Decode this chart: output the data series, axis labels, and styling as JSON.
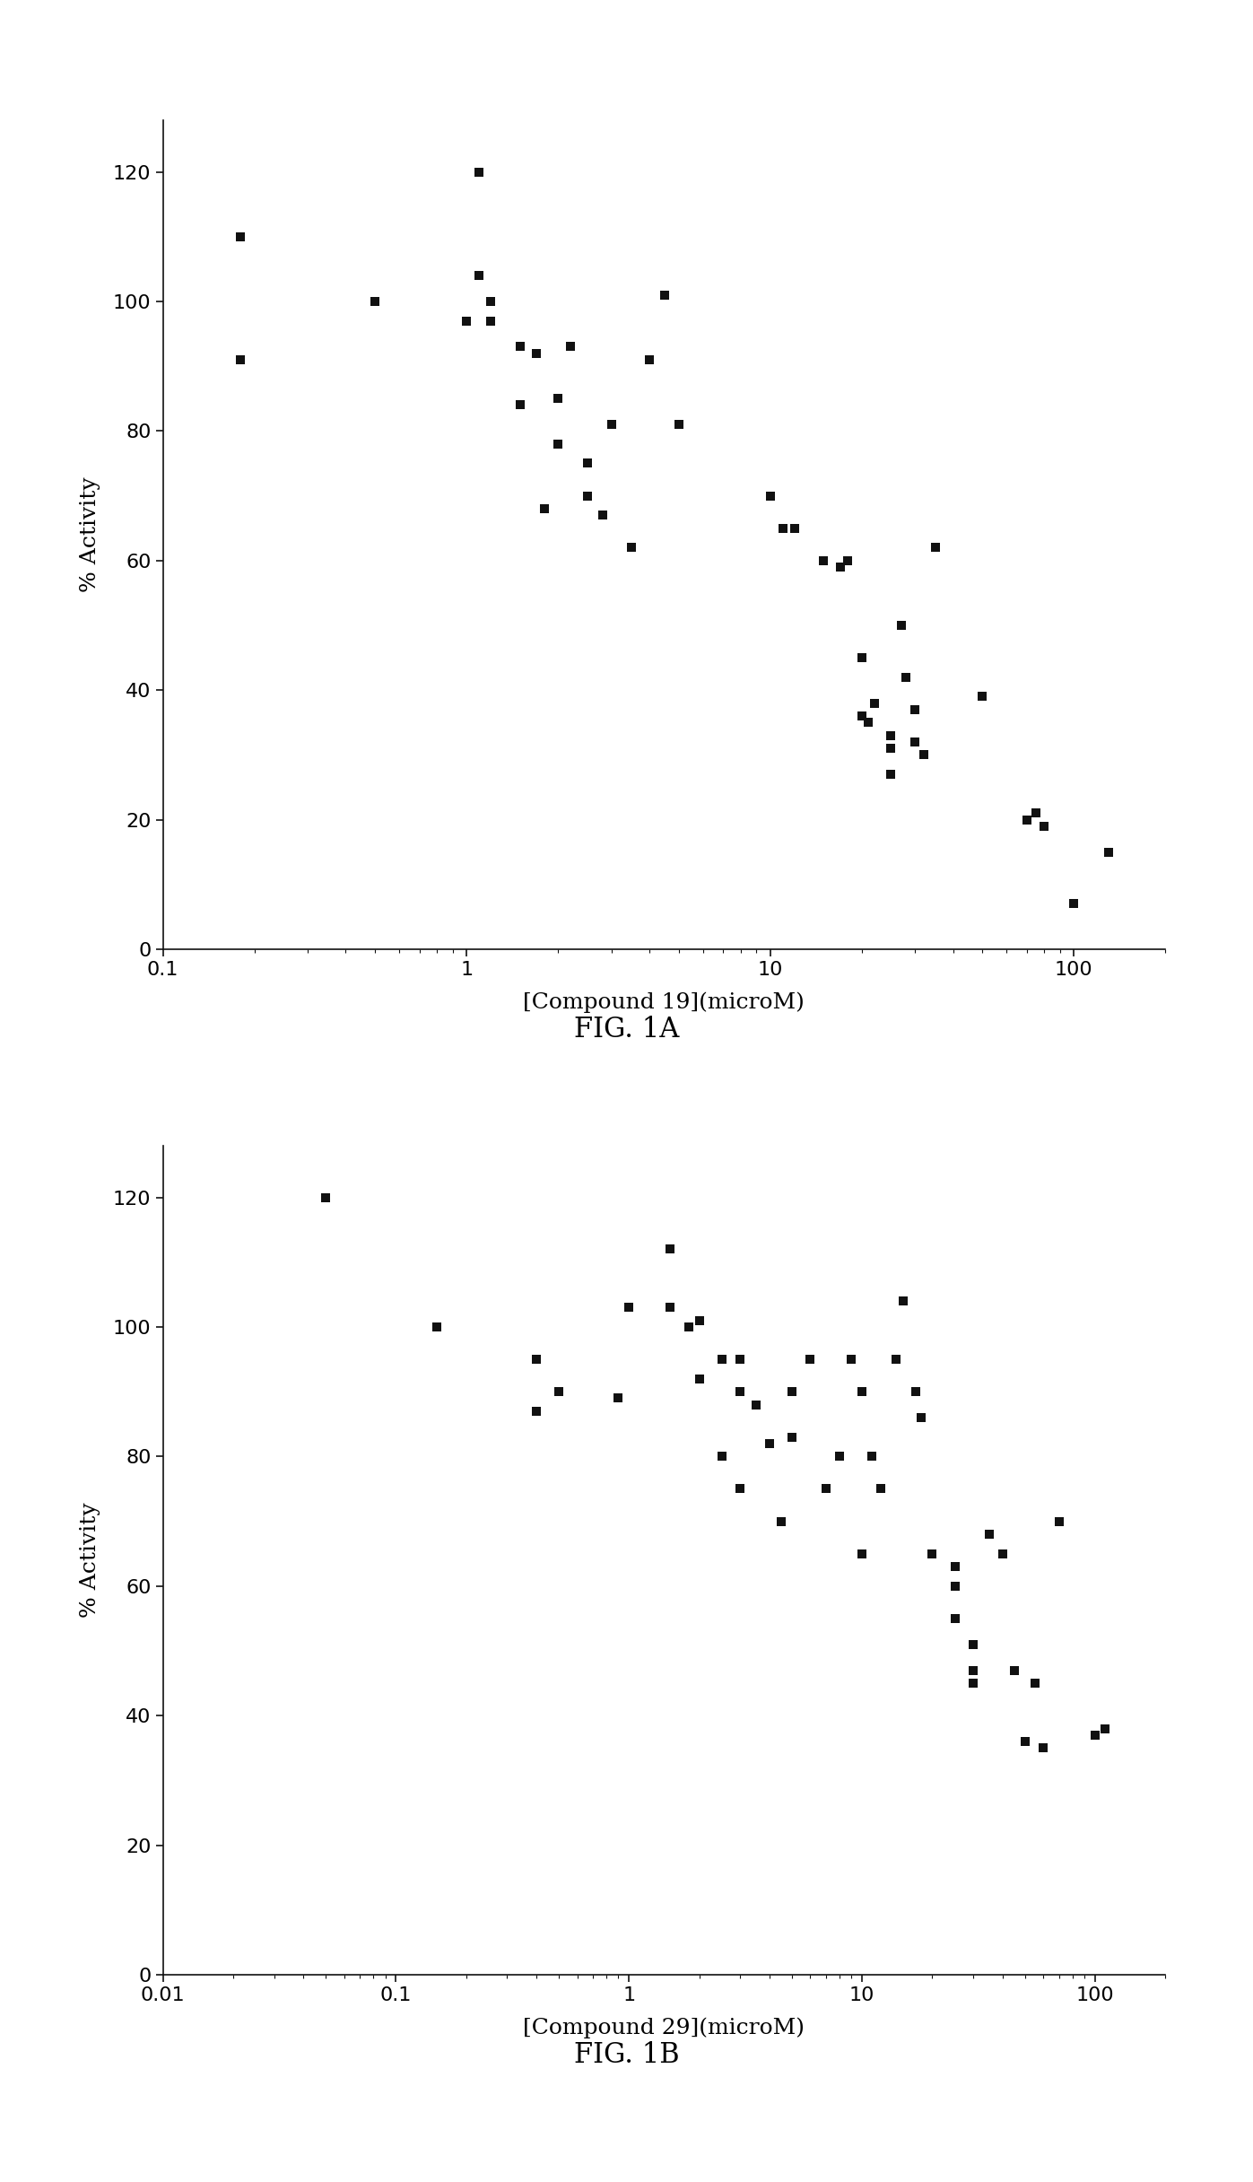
{
  "fig1a": {
    "x": [
      0.18,
      0.18,
      0.5,
      1.0,
      1.1,
      1.1,
      1.2,
      1.2,
      1.5,
      1.5,
      1.7,
      1.8,
      2.0,
      2.0,
      2.2,
      2.5,
      2.5,
      2.8,
      3.0,
      3.5,
      4.0,
      4.5,
      5.0,
      10,
      11,
      12,
      15,
      17,
      18,
      20,
      20,
      21,
      22,
      25,
      25,
      25,
      27,
      28,
      30,
      30,
      32,
      35,
      50,
      70,
      75,
      80,
      100,
      130
    ],
    "y": [
      110,
      91,
      100,
      97,
      120,
      104,
      100,
      97,
      84,
      93,
      92,
      68,
      85,
      78,
      93,
      75,
      70,
      67,
      81,
      62,
      91,
      101,
      81,
      70,
      65,
      65,
      60,
      59,
      60,
      45,
      36,
      35,
      38,
      31,
      33,
      27,
      50,
      42,
      32,
      37,
      30,
      62,
      39,
      20,
      21,
      19,
      7,
      15
    ],
    "xlabel": "[Compound 19](microM)",
    "ylabel": "% Activity",
    "xlim": [
      0.1,
      200
    ],
    "ylim": [
      0,
      128
    ],
    "yticks": [
      0,
      20,
      40,
      60,
      80,
      100,
      120
    ],
    "caption": "FIG. 1A"
  },
  "fig1b": {
    "x": [
      0.05,
      0.15,
      0.4,
      0.4,
      0.5,
      0.9,
      1.0,
      1.5,
      1.5,
      1.8,
      2.0,
      2.0,
      2.5,
      2.5,
      3.0,
      3.0,
      3.0,
      3.5,
      4.0,
      4.5,
      5.0,
      5.0,
      6.0,
      7.0,
      8.0,
      9.0,
      10,
      10,
      11,
      12,
      14,
      15,
      17,
      18,
      20,
      25,
      25,
      25,
      30,
      30,
      30,
      30,
      30,
      35,
      40,
      45,
      50,
      55,
      60,
      70,
      100,
      110
    ],
    "y": [
      120,
      100,
      95,
      87,
      90,
      89,
      103,
      112,
      103,
      100,
      92,
      101,
      80,
      95,
      75,
      90,
      95,
      88,
      82,
      70,
      90,
      83,
      95,
      75,
      80,
      95,
      65,
      90,
      80,
      75,
      95,
      104,
      90,
      86,
      65,
      63,
      60,
      55,
      51,
      47,
      47,
      45,
      45,
      68,
      65,
      47,
      36,
      45,
      35,
      70,
      37,
      38
    ],
    "xlabel": "[Compound 29](microM)",
    "ylabel": "% Activity",
    "xlim": [
      0.01,
      200
    ],
    "ylim": [
      0,
      128
    ],
    "yticks": [
      0,
      20,
      40,
      60,
      80,
      100,
      120
    ],
    "caption": "FIG. 1B"
  },
  "marker_color": "#111111",
  "marker_size": 60,
  "marker_style": "s",
  "background_color": "#ffffff",
  "spine_color": "#111111",
  "tick_color": "#111111",
  "label_fontsize": 18,
  "tick_fontsize": 16,
  "caption_fontsize": 22
}
